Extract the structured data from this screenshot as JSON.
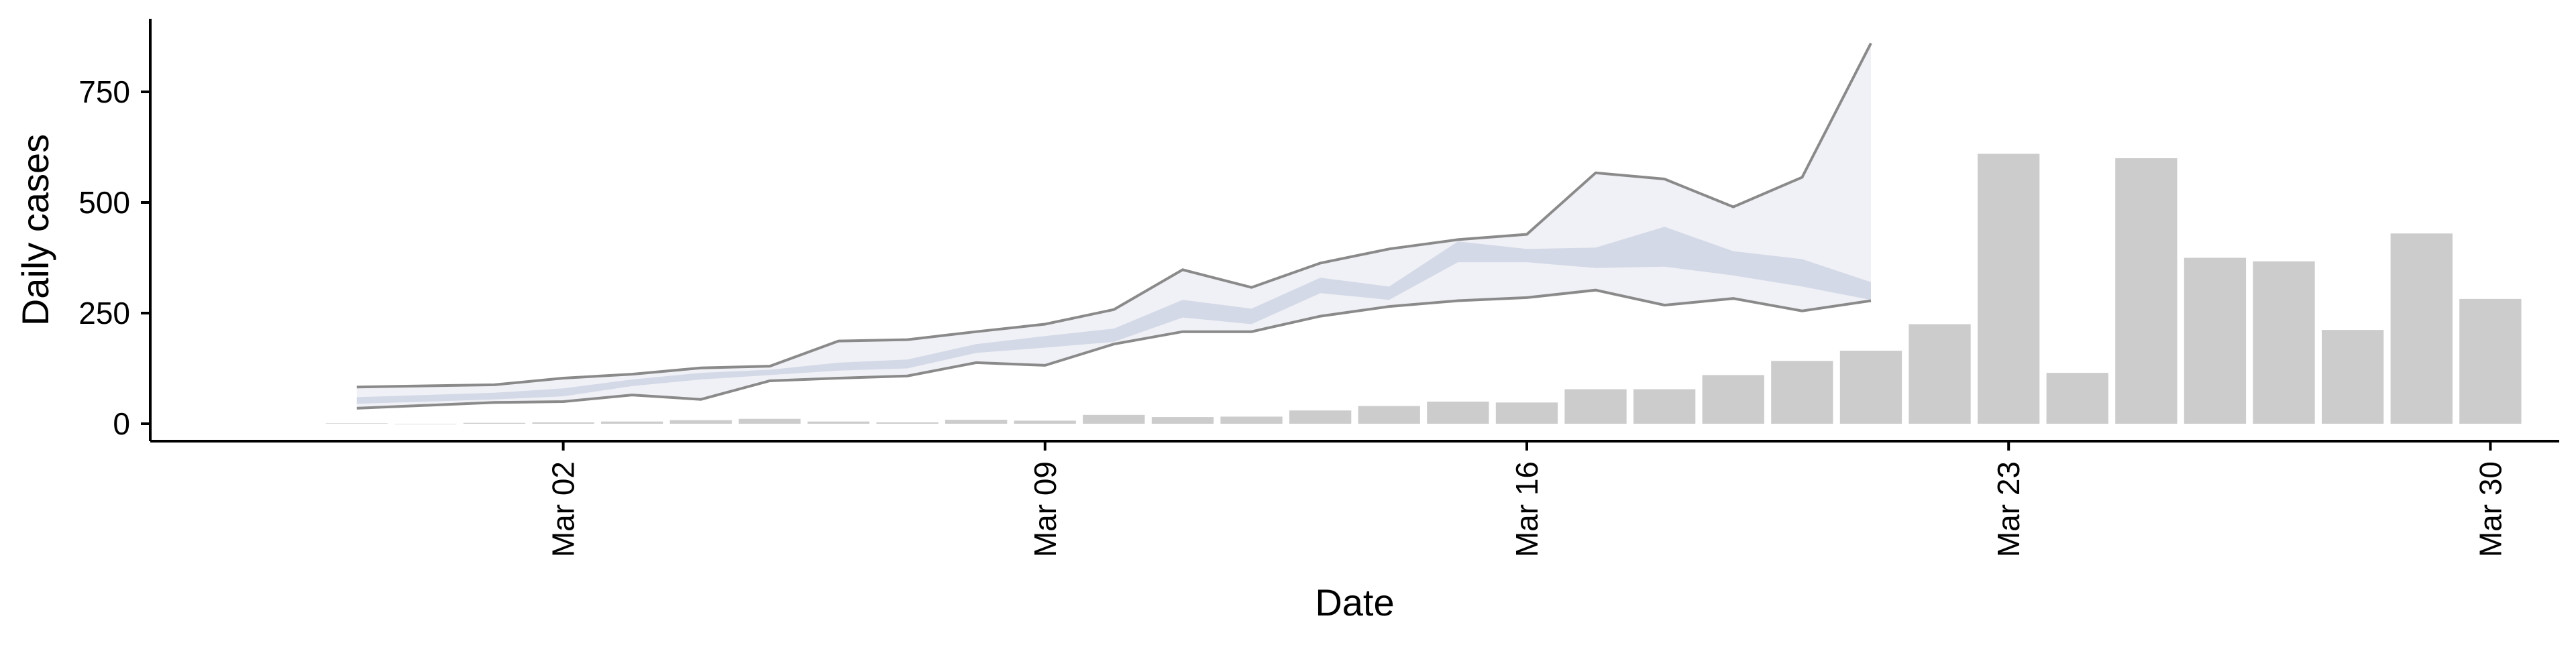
{
  "chart_data": {
    "type": "bar",
    "xlabel": "Date",
    "ylabel": "Daily cases",
    "title": "",
    "ylim": [
      0,
      900
    ],
    "xlim": [
      "2020-02-25",
      "2020-03-31"
    ],
    "grid": false,
    "legend": "none",
    "x_ticks": [
      {
        "date": "2020-03-02",
        "label": "Mar 02"
      },
      {
        "date": "2020-03-09",
        "label": "Mar 09"
      },
      {
        "date": "2020-03-16",
        "label": "Mar 16"
      },
      {
        "date": "2020-03-23",
        "label": "Mar 23"
      },
      {
        "date": "2020-03-30",
        "label": "Mar 30"
      }
    ],
    "y_ticks": [
      0,
      250,
      500,
      750
    ],
    "bars": {
      "name": "",
      "x": [
        "2020-02-28",
        "2020-02-29",
        "2020-03-01",
        "2020-03-02",
        "2020-03-03",
        "2020-03-04",
        "2020-03-05",
        "2020-03-06",
        "2020-03-07",
        "2020-03-08",
        "2020-03-09",
        "2020-03-10",
        "2020-03-11",
        "2020-03-12",
        "2020-03-13",
        "2020-03-14",
        "2020-03-15",
        "2020-03-16",
        "2020-03-17",
        "2020-03-18",
        "2020-03-19",
        "2020-03-20",
        "2020-03-21",
        "2020-03-22",
        "2020-03-23",
        "2020-03-24",
        "2020-03-25",
        "2020-03-26",
        "2020-03-27",
        "2020-03-28",
        "2020-03-29",
        "2020-03-30"
      ],
      "values": [
        1,
        0,
        2,
        3,
        5,
        8,
        11,
        5,
        3,
        9,
        7,
        20,
        15,
        16,
        30,
        40,
        50,
        48,
        78,
        78,
        110,
        142,
        165,
        225,
        610,
        115,
        600,
        375,
        367,
        212,
        430,
        282
      ]
    },
    "forecast": {
      "x": [
        "2020-02-28",
        "2020-03-01",
        "2020-03-02",
        "2020-03-03",
        "2020-03-04",
        "2020-03-05",
        "2020-03-06",
        "2020-03-07",
        "2020-03-08",
        "2020-03-09",
        "2020-03-10",
        "2020-03-11",
        "2020-03-12",
        "2020-03-13",
        "2020-03-14",
        "2020-03-15",
        "2020-03-16",
        "2020-03-17",
        "2020-03-18",
        "2020-03-19",
        "2020-03-20",
        "2020-03-21"
      ],
      "outer_upper": [
        83,
        88,
        103,
        112,
        126,
        130,
        187,
        190,
        208,
        225,
        258,
        348,
        308,
        363,
        395,
        416,
        428,
        567,
        553,
        490,
        557,
        860
      ],
      "outer_lower": [
        35,
        48,
        50,
        65,
        55,
        97,
        103,
        108,
        138,
        132,
        180,
        208,
        208,
        243,
        265,
        278,
        285,
        302,
        268,
        283,
        255,
        278
      ],
      "inner_upper": [
        60,
        70,
        80,
        100,
        115,
        122,
        138,
        145,
        180,
        198,
        215,
        280,
        260,
        330,
        310,
        412,
        395,
        398,
        445,
        390,
        372,
        320
      ],
      "inner_lower": [
        45,
        55,
        62,
        85,
        100,
        110,
        120,
        125,
        160,
        172,
        185,
        240,
        225,
        295,
        280,
        365,
        365,
        352,
        355,
        335,
        310,
        280
      ]
    },
    "colors": {
      "bars": "#cccccc",
      "band_outer": "#eef0f5",
      "band_inner": "#cfd5e4",
      "band_outline": "#8a8a8a",
      "axis": "#000000"
    }
  }
}
